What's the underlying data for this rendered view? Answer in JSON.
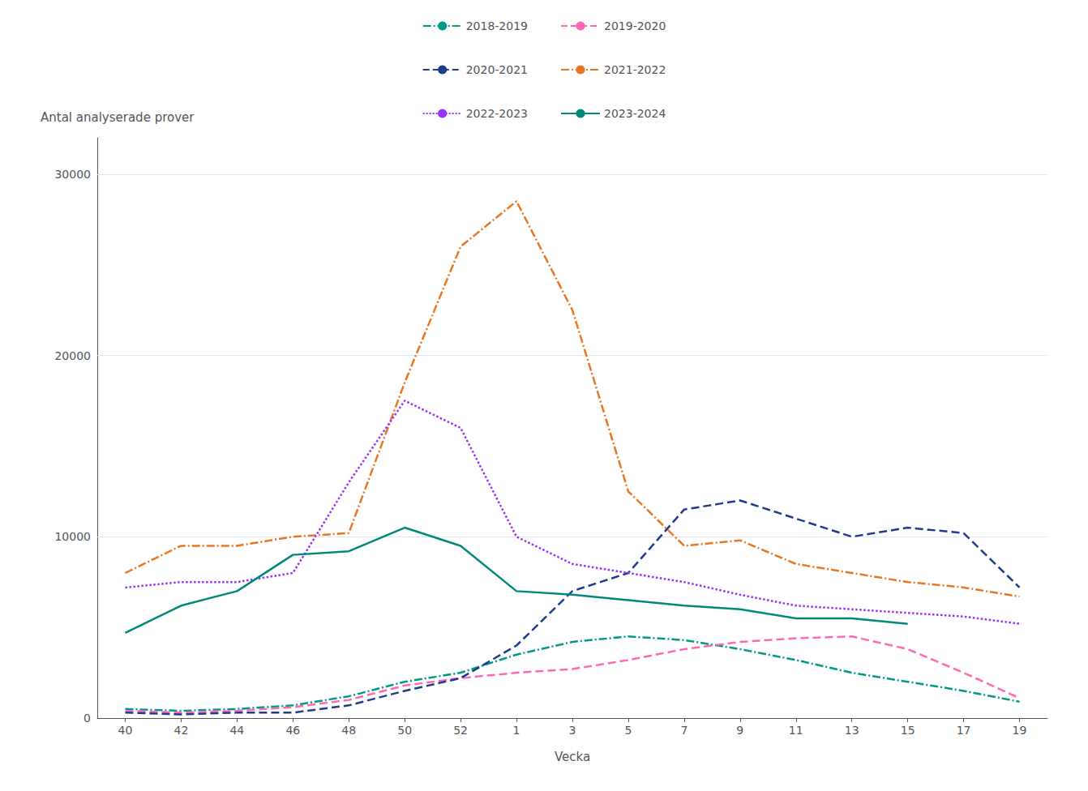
{
  "chart_data": {
    "type": "line",
    "xlabel": "Vecka",
    "ylabel": "Antal analyserade prover",
    "categories": [
      "40",
      "42",
      "44",
      "46",
      "48",
      "50",
      "52",
      "1",
      "3",
      "5",
      "7",
      "9",
      "11",
      "13",
      "15",
      "17",
      "19"
    ],
    "ylim": [
      0,
      32000
    ],
    "yticks": [
      0,
      10000,
      20000,
      30000
    ],
    "grid": true,
    "legend": "top",
    "series": [
      {
        "name": "2018-2019",
        "color": "#009988",
        "line_style": "dashdot",
        "values": [
          500,
          400,
          500,
          700,
          1200,
          2000,
          2500,
          3500,
          4200,
          4500,
          4300,
          3800,
          3200,
          2500,
          2000,
          1500,
          900
        ]
      },
      {
        "name": "2019-2020",
        "color": "#FF69B4",
        "line_style": "dashed",
        "values": [
          400,
          300,
          400,
          600,
          1000,
          1800,
          2200,
          2500,
          2700,
          3200,
          3800,
          4200,
          4400,
          4500,
          3800,
          2500,
          1100
        ]
      },
      {
        "name": "2020-2021",
        "color": "#1f3b8c",
        "line_style": "dashed",
        "values": [
          300,
          200,
          300,
          300,
          700,
          1500,
          2200,
          4000,
          7000,
          8000,
          11500,
          12000,
          11000,
          10000,
          10500,
          10200,
          7200
        ]
      },
      {
        "name": "2021-2022",
        "color": "#E87722",
        "line_style": "dashdot",
        "values": [
          8000,
          9500,
          9500,
          10000,
          10200,
          18500,
          26000,
          28500,
          22500,
          12500,
          9500,
          9800,
          8500,
          8000,
          7500,
          7200,
          6700
        ]
      },
      {
        "name": "2022-2023",
        "color": "#9B30FF",
        "line_style": "dotted",
        "values": [
          7200,
          7500,
          7500,
          8000,
          13000,
          17500,
          16000,
          10000,
          8500,
          8000,
          7500,
          6800,
          6200,
          6000,
          5800,
          5600,
          5200
        ]
      },
      {
        "name": "2023-2024",
        "color": "#00897B",
        "line_style": "solid",
        "values": [
          4700,
          6200,
          7000,
          9000,
          9200,
          10500,
          9500,
          7000,
          6800,
          6500,
          6200,
          6000,
          5500,
          5500,
          5200,
          null,
          null
        ]
      }
    ]
  }
}
